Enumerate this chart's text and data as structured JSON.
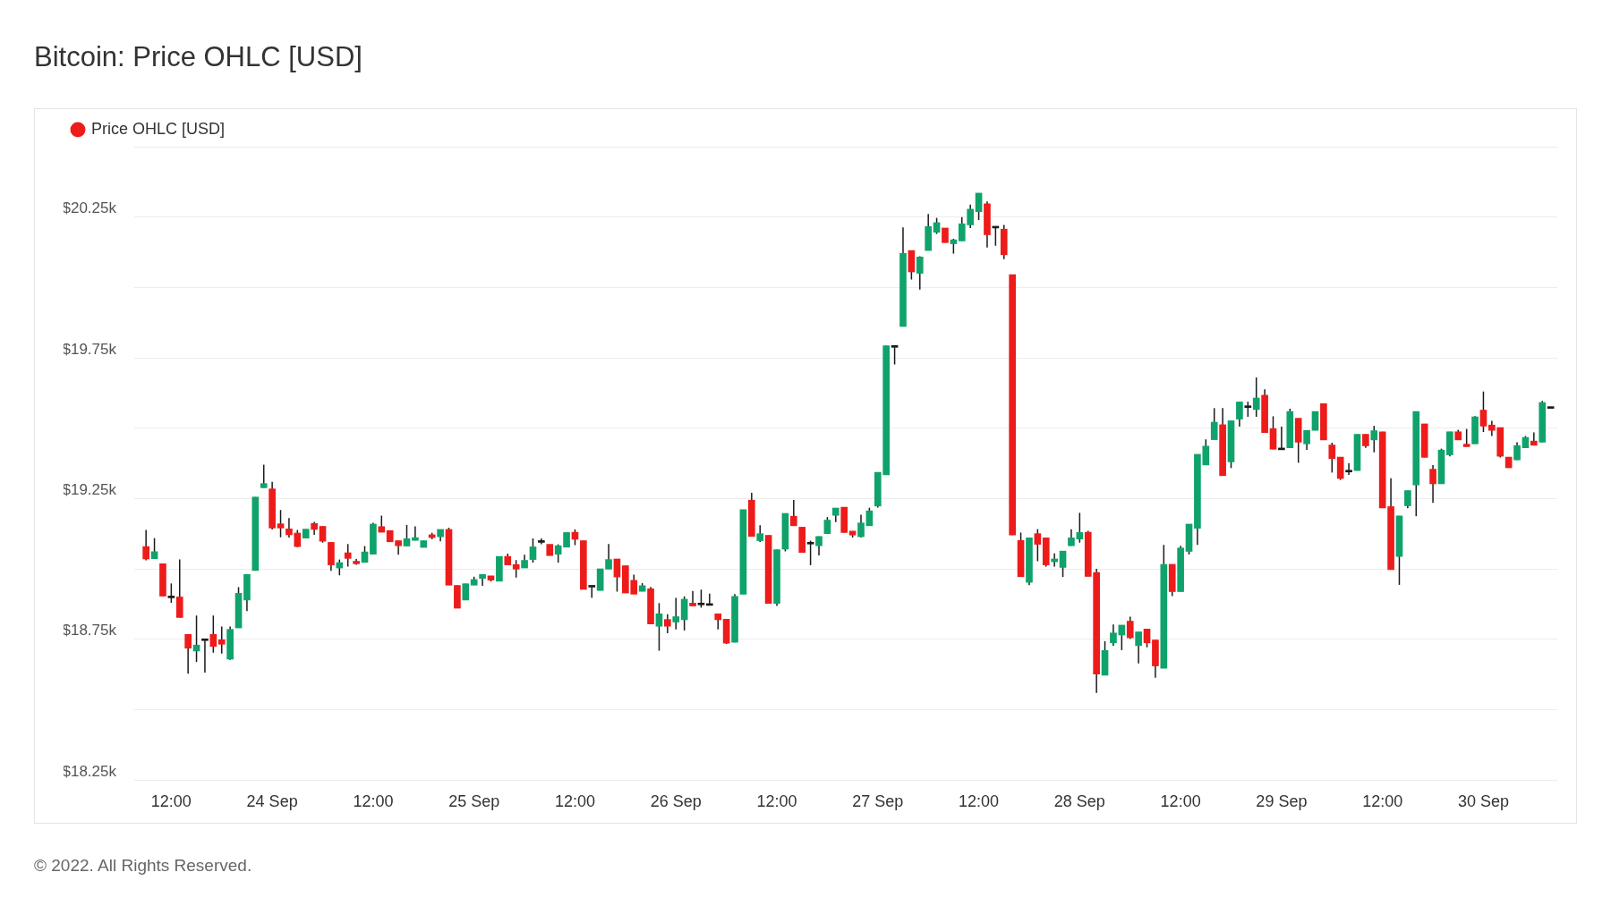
{
  "chart_data": {
    "type": "candlestick",
    "title": "Bitcoin: Price OHLC [USD]",
    "x": [
      "2022-09-23T09:00",
      "2022-09-23T10:00",
      "2022-09-23T11:00",
      "2022-09-23T12:00",
      "2022-09-23T13:00",
      "2022-09-23T14:00",
      "2022-09-23T15:00",
      "2022-09-23T16:00",
      "2022-09-23T17:00",
      "2022-09-23T18:00",
      "2022-09-23T19:00",
      "2022-09-23T20:00",
      "2022-09-23T21:00",
      "2022-09-23T22:00",
      "2022-09-23T23:00",
      "2022-09-24T00:00",
      "2022-09-24T01:00",
      "2022-09-24T02:00",
      "2022-09-24T03:00",
      "2022-09-24T04:00",
      "2022-09-24T05:00",
      "2022-09-24T06:00",
      "2022-09-24T07:00",
      "2022-09-24T08:00",
      "2022-09-24T09:00",
      "2022-09-24T10:00",
      "2022-09-24T11:00",
      "2022-09-24T12:00",
      "2022-09-24T13:00",
      "2022-09-24T14:00",
      "2022-09-24T15:00",
      "2022-09-24T16:00",
      "2022-09-24T17:00",
      "2022-09-24T18:00",
      "2022-09-24T19:00",
      "2022-09-24T20:00",
      "2022-09-24T21:00",
      "2022-09-24T22:00",
      "2022-09-24T23:00",
      "2022-09-25T00:00",
      "2022-09-25T01:00",
      "2022-09-25T02:00",
      "2022-09-25T03:00",
      "2022-09-25T04:00",
      "2022-09-25T05:00",
      "2022-09-25T06:00",
      "2022-09-25T07:00",
      "2022-09-25T08:00",
      "2022-09-25T09:00",
      "2022-09-25T10:00",
      "2022-09-25T11:00",
      "2022-09-25T12:00",
      "2022-09-25T13:00",
      "2022-09-25T14:00",
      "2022-09-25T15:00",
      "2022-09-25T16:00",
      "2022-09-25T17:00",
      "2022-09-25T18:00",
      "2022-09-25T19:00",
      "2022-09-25T20:00",
      "2022-09-25T21:00",
      "2022-09-25T22:00",
      "2022-09-25T23:00",
      "2022-09-26T00:00",
      "2022-09-26T01:00",
      "2022-09-26T02:00",
      "2022-09-26T03:00",
      "2022-09-26T04:00",
      "2022-09-26T05:00",
      "2022-09-26T06:00",
      "2022-09-26T07:00",
      "2022-09-26T08:00",
      "2022-09-26T09:00",
      "2022-09-26T10:00",
      "2022-09-26T11:00",
      "2022-09-26T12:00",
      "2022-09-26T13:00",
      "2022-09-26T14:00",
      "2022-09-26T15:00",
      "2022-09-26T16:00",
      "2022-09-26T17:00",
      "2022-09-26T18:00",
      "2022-09-26T19:00",
      "2022-09-26T20:00",
      "2022-09-26T21:00",
      "2022-09-26T22:00",
      "2022-09-26T23:00",
      "2022-09-27T00:00",
      "2022-09-27T01:00",
      "2022-09-27T02:00",
      "2022-09-27T03:00",
      "2022-09-27T04:00",
      "2022-09-27T05:00",
      "2022-09-27T06:00",
      "2022-09-27T07:00",
      "2022-09-27T08:00",
      "2022-09-27T09:00",
      "2022-09-27T10:00",
      "2022-09-27T11:00",
      "2022-09-27T12:00",
      "2022-09-27T13:00",
      "2022-09-27T14:00",
      "2022-09-27T15:00",
      "2022-09-27T16:00",
      "2022-09-27T17:00",
      "2022-09-27T18:00",
      "2022-09-27T19:00",
      "2022-09-27T20:00",
      "2022-09-27T21:00",
      "2022-09-27T22:00",
      "2022-09-27T23:00",
      "2022-09-28T00:00",
      "2022-09-28T01:00",
      "2022-09-28T02:00",
      "2022-09-28T03:00",
      "2022-09-28T04:00",
      "2022-09-28T05:00",
      "2022-09-28T06:00",
      "2022-09-28T07:00",
      "2022-09-28T08:00",
      "2022-09-28T09:00",
      "2022-09-28T10:00",
      "2022-09-28T11:00",
      "2022-09-28T12:00",
      "2022-09-28T13:00",
      "2022-09-28T14:00",
      "2022-09-28T15:00",
      "2022-09-28T16:00",
      "2022-09-28T17:00",
      "2022-09-28T18:00",
      "2022-09-28T19:00",
      "2022-09-28T20:00",
      "2022-09-28T21:00",
      "2022-09-28T22:00",
      "2022-09-28T23:00",
      "2022-09-29T00:00",
      "2022-09-29T01:00",
      "2022-09-29T02:00",
      "2022-09-29T03:00",
      "2022-09-29T04:00",
      "2022-09-29T05:00",
      "2022-09-29T06:00",
      "2022-09-29T07:00",
      "2022-09-29T08:00",
      "2022-09-29T09:00",
      "2022-09-29T10:00",
      "2022-09-29T11:00",
      "2022-09-29T12:00",
      "2022-09-29T13:00",
      "2022-09-29T14:00",
      "2022-09-29T15:00",
      "2022-09-29T16:00",
      "2022-09-29T17:00",
      "2022-09-29T18:00",
      "2022-09-29T19:00",
      "2022-09-29T20:00",
      "2022-09-29T21:00",
      "2022-09-29T22:00",
      "2022-09-29T23:00",
      "2022-09-30T00:00",
      "2022-09-30T01:00",
      "2022-09-30T02:00",
      "2022-09-30T03:00",
      "2022-09-30T04:00",
      "2022-09-30T05:00",
      "2022-09-30T06:00",
      "2022-09-30T07:00",
      "2022-09-30T08:00"
    ],
    "xlim": [
      "2022-09-23T07:36",
      "2022-09-30T08:47"
    ],
    "xticks": [
      {
        "value": "2022-09-23T12:00",
        "label": "12:00"
      },
      {
        "value": "2022-09-24T00:00",
        "label": "24 Sep"
      },
      {
        "value": "2022-09-24T12:00",
        "label": "12:00"
      },
      {
        "value": "2022-09-25T00:00",
        "label": "25 Sep"
      },
      {
        "value": "2022-09-25T12:00",
        "label": "12:00"
      },
      {
        "value": "2022-09-26T00:00",
        "label": "26 Sep"
      },
      {
        "value": "2022-09-26T12:00",
        "label": "12:00"
      },
      {
        "value": "2022-09-27T00:00",
        "label": "27 Sep"
      },
      {
        "value": "2022-09-27T12:00",
        "label": "12:00"
      },
      {
        "value": "2022-09-28T00:00",
        "label": "28 Sep"
      },
      {
        "value": "2022-09-28T12:00",
        "label": "12:00"
      },
      {
        "value": "2022-09-29T00:00",
        "label": "29 Sep"
      },
      {
        "value": "2022-09-29T12:00",
        "label": "12:00"
      },
      {
        "value": "2022-09-30T00:00",
        "label": "30 Sep"
      }
    ],
    "ylim": [
      18250,
      20500
    ],
    "yticks": [
      {
        "value": 18250,
        "label": "$18.25k"
      },
      {
        "value": 18500,
        "label": null
      },
      {
        "value": 18750,
        "label": "$18.75k"
      },
      {
        "value": 19000,
        "label": null
      },
      {
        "value": 19250,
        "label": "$19.25k"
      },
      {
        "value": 19500,
        "label": null
      },
      {
        "value": 19750,
        "label": "$19.75k"
      },
      {
        "value": 20000,
        "label": null
      },
      {
        "value": 20250,
        "label": "$20.25k"
      },
      {
        "value": 20500,
        "label": null
      }
    ],
    "grid": "y",
    "legend": "top left",
    "series": [
      {
        "name": "Price OHLC [USD]",
        "color": "#ee1b1b",
        "ohlc": [
          [
            19079,
            19138,
            19030,
            19035
          ],
          [
            19036,
            19109,
            19036,
            19061
          ],
          [
            19018,
            19018,
            18903,
            18903
          ],
          [
            18897,
            18948,
            18879,
            18897
          ],
          [
            18900,
            19033,
            18827,
            18827
          ],
          [
            18767,
            18767,
            18627,
            18718
          ],
          [
            18708,
            18834,
            18669,
            18729
          ],
          [
            18745,
            18745,
            18631,
            18745
          ],
          [
            18767,
            18834,
            18702,
            18724
          ],
          [
            18748,
            18795,
            18699,
            18732
          ],
          [
            18679,
            18795,
            18677,
            18785
          ],
          [
            18790,
            18935,
            18790,
            18913
          ],
          [
            18889,
            18980,
            18850,
            18980
          ],
          [
            18994,
            19255,
            18994,
            19255
          ],
          [
            19288,
            19370,
            19288,
            19303
          ],
          [
            19284,
            19309,
            19140,
            19145
          ],
          [
            19160,
            19209,
            19112,
            19145
          ],
          [
            19142,
            19180,
            19111,
            19121
          ],
          [
            19127,
            19138,
            19077,
            19079
          ],
          [
            19109,
            19141,
            19109,
            19141
          ],
          [
            19161,
            19167,
            19121,
            19140
          ],
          [
            19151,
            19151,
            19093,
            19098
          ],
          [
            19094,
            19094,
            18993,
            19014
          ],
          [
            19003,
            19033,
            18977,
            19022
          ],
          [
            19057,
            19088,
            19008,
            19037
          ],
          [
            19027,
            19035,
            19014,
            19018
          ],
          [
            19023,
            19081,
            19023,
            19060
          ],
          [
            19052,
            19164,
            19052,
            19159
          ],
          [
            19150,
            19189,
            19130,
            19130
          ],
          [
            19136,
            19136,
            19096,
            19096
          ],
          [
            19100,
            19100,
            19050,
            19082
          ],
          [
            19081,
            19156,
            19081,
            19107
          ],
          [
            19101,
            19151,
            19101,
            19111
          ],
          [
            19076,
            19100,
            19076,
            19100
          ],
          [
            19121,
            19128,
            19105,
            19111
          ],
          [
            19114,
            19140,
            19098,
            19140
          ],
          [
            19140,
            19146,
            18942,
            18942
          ],
          [
            18941,
            18941,
            18860,
            18860
          ],
          [
            18889,
            18947,
            18889,
            18947
          ],
          [
            18942,
            18972,
            18942,
            18962
          ],
          [
            18966,
            18980,
            18940,
            18980
          ],
          [
            18975,
            18975,
            18955,
            18960
          ],
          [
            18956,
            19044,
            18956,
            19044
          ],
          [
            19044,
            19054,
            19014,
            19014
          ],
          [
            19015,
            19031,
            18969,
            18999
          ],
          [
            19003,
            19050,
            19003,
            19030
          ],
          [
            19033,
            19108,
            19022,
            19078
          ],
          [
            19094,
            19108,
            19087,
            19094
          ],
          [
            19087,
            19087,
            19047,
            19047
          ],
          [
            19052,
            19087,
            19022,
            19082
          ],
          [
            19077,
            19129,
            19077,
            19129
          ],
          [
            19130,
            19140,
            19084,
            19105
          ],
          [
            19100,
            19100,
            18927,
            18927
          ],
          [
            18935,
            18935,
            18897,
            18935
          ],
          [
            18923,
            19000,
            18923,
            19000
          ],
          [
            18999,
            19088,
            18999,
            19033
          ],
          [
            19035,
            19035,
            18919,
            18971
          ],
          [
            19011,
            19011,
            18914,
            18914
          ],
          [
            18959,
            18979,
            18910,
            18910
          ],
          [
            18920,
            18949,
            18920,
            18940
          ],
          [
            18929,
            18936,
            18804,
            18804
          ],
          [
            18796,
            18878,
            18709,
            18840
          ],
          [
            18820,
            18839,
            18771,
            18796
          ],
          [
            18811,
            18897,
            18785,
            18830
          ],
          [
            18819,
            18902,
            18781,
            18892
          ],
          [
            18878,
            18921,
            18868,
            18868
          ],
          [
            18872,
            18926,
            18862,
            18872
          ],
          [
            18870,
            18912,
            18870,
            18870
          ],
          [
            18840,
            18840,
            18785,
            18819
          ],
          [
            18821,
            18821,
            18733,
            18736
          ],
          [
            18739,
            18910,
            18739,
            18902
          ],
          [
            18910,
            19210,
            18910,
            19210
          ],
          [
            19244,
            19270,
            19115,
            19115
          ],
          [
            19100,
            19155,
            19095,
            19125
          ],
          [
            19119,
            19119,
            18877,
            18877
          ],
          [
            18877,
            19068,
            18868,
            19068
          ],
          [
            19070,
            19197,
            19062,
            19197
          ],
          [
            19187,
            19245,
            19153,
            19153
          ],
          [
            19148,
            19148,
            19058,
            19058
          ],
          [
            19088,
            19100,
            19013,
            19088
          ],
          [
            19082,
            19115,
            19048,
            19115
          ],
          [
            19125,
            19184,
            19125,
            19173
          ],
          [
            19190,
            19216,
            19166,
            19216
          ],
          [
            19219,
            19219,
            19129,
            19129
          ],
          [
            19134,
            19134,
            19111,
            19120
          ],
          [
            19114,
            19192,
            19111,
            19163
          ],
          [
            19153,
            19217,
            19153,
            19206
          ],
          [
            19223,
            19343,
            19218,
            19343
          ],
          [
            19334,
            19793,
            19334,
            19793
          ],
          [
            19787,
            19787,
            19726,
            19787
          ],
          [
            19861,
            20213,
            19861,
            20121
          ],
          [
            20131,
            20131,
            20028,
            20055
          ],
          [
            20050,
            20111,
            19992,
            20108
          ],
          [
            20131,
            20261,
            20131,
            20216
          ],
          [
            20196,
            20247,
            20190,
            20230
          ],
          [
            20211,
            20211,
            20159,
            20159
          ],
          [
            20155,
            20173,
            20120,
            20169
          ],
          [
            20165,
            20250,
            20165,
            20226
          ],
          [
            20222,
            20294,
            20211,
            20278
          ],
          [
            20269,
            20335,
            20239,
            20335
          ],
          [
            20297,
            20305,
            20142,
            20187
          ],
          [
            20211,
            20211,
            20148,
            20211
          ],
          [
            20207,
            20222,
            20100,
            20116
          ],
          [
            20045,
            20045,
            19120,
            19120
          ],
          [
            19101,
            19129,
            18972,
            18972
          ],
          [
            18952,
            19110,
            18942,
            19110
          ],
          [
            19125,
            19141,
            19027,
            19087
          ],
          [
            19110,
            19110,
            19008,
            19014
          ],
          [
            19025,
            19055,
            19008,
            19035
          ],
          [
            19005,
            19063,
            18971,
            19063
          ],
          [
            19082,
            19141,
            19082,
            19110
          ],
          [
            19106,
            19199,
            19093,
            19129
          ],
          [
            19130,
            19135,
            18973,
            18973
          ],
          [
            18987,
            19000,
            18559,
            18626
          ],
          [
            18622,
            18743,
            18622,
            18710
          ],
          [
            18737,
            18802,
            18727,
            18772
          ],
          [
            18765,
            18800,
            18711,
            18800
          ],
          [
            18814,
            18830,
            18751,
            18755
          ],
          [
            18727,
            18776,
            18664,
            18776
          ],
          [
            18786,
            18786,
            18721,
            18737
          ],
          [
            18747,
            18747,
            18613,
            18655
          ],
          [
            18647,
            19085,
            18647,
            19016
          ],
          [
            19016,
            19016,
            18903,
            18919
          ],
          [
            18919,
            19082,
            18919,
            19074
          ],
          [
            19062,
            19159,
            19051,
            19159
          ],
          [
            19144,
            19407,
            19085,
            19407
          ],
          [
            19369,
            19460,
            19369,
            19436
          ],
          [
            19459,
            19571,
            19459,
            19521
          ],
          [
            19512,
            19571,
            19331,
            19331
          ],
          [
            19380,
            19526,
            19358,
            19526
          ],
          [
            19532,
            19593,
            19505,
            19593
          ],
          [
            19573,
            19594,
            19540,
            19573
          ],
          [
            19566,
            19680,
            19540,
            19607
          ],
          [
            19617,
            19638,
            19484,
            19484
          ],
          [
            19498,
            19542,
            19425,
            19425
          ],
          [
            19423,
            19505,
            19423,
            19423
          ],
          [
            19430,
            19569,
            19430,
            19559
          ],
          [
            19535,
            19535,
            19377,
            19450
          ],
          [
            19444,
            19492,
            19423,
            19492
          ],
          [
            19492,
            19559,
            19492,
            19559
          ],
          [
            19587,
            19587,
            19458,
            19458
          ],
          [
            19440,
            19448,
            19342,
            19392
          ],
          [
            19397,
            19397,
            19316,
            19321
          ],
          [
            19344,
            19375,
            19334,
            19344
          ],
          [
            19349,
            19478,
            19349,
            19478
          ],
          [
            19478,
            19478,
            19430,
            19437
          ],
          [
            19458,
            19508,
            19414,
            19491
          ],
          [
            19487,
            19487,
            19216,
            19216
          ],
          [
            19221,
            19322,
            18997,
            18997
          ],
          [
            19044,
            19188,
            18943,
            19188
          ],
          [
            19224,
            19278,
            19215,
            19278
          ],
          [
            19298,
            19559,
            19187,
            19559
          ],
          [
            19515,
            19515,
            19396,
            19396
          ],
          [
            19354,
            19369,
            19234,
            19302
          ],
          [
            19302,
            19427,
            19302,
            19422
          ],
          [
            19405,
            19487,
            19400,
            19487
          ],
          [
            19487,
            19494,
            19458,
            19458
          ],
          [
            19443,
            19497,
            19434,
            19434
          ],
          [
            19444,
            19543,
            19444,
            19540
          ],
          [
            19564,
            19630,
            19486,
            19507
          ],
          [
            19511,
            19526,
            19472,
            19492
          ],
          [
            19502,
            19502,
            19396,
            19400
          ],
          [
            19397,
            19397,
            19359,
            19359
          ],
          [
            19387,
            19450,
            19387,
            19438
          ],
          [
            19430,
            19472,
            19430,
            19467
          ],
          [
            19454,
            19485,
            19439,
            19439
          ],
          [
            19450,
            19597,
            19450,
            19591
          ],
          [
            19570,
            19570,
            19570,
            19570
          ]
        ],
        "colors": [
          "#ee1b1b",
          "#0fa36b",
          "#ee1b1b",
          "#1a1a1a",
          "#ee1b1b",
          "#ee1b1b",
          "#0fa36b",
          "#1a1a1a",
          "#ee1b1b",
          "#ee1b1b",
          "#0fa36b",
          "#0fa36b",
          "#0fa36b",
          "#0fa36b",
          "#0fa36b",
          "#ee1b1b",
          "#ee1b1b",
          "#ee1b1b",
          "#ee1b1b",
          "#0fa36b",
          "#ee1b1b",
          "#ee1b1b",
          "#ee1b1b",
          "#0fa36b",
          "#ee1b1b",
          "#ee1b1b",
          "#0fa36b",
          "#0fa36b",
          "#ee1b1b",
          "#ee1b1b",
          "#ee1b1b",
          "#0fa36b",
          "#0fa36b",
          "#0fa36b",
          "#ee1b1b",
          "#0fa36b",
          "#ee1b1b",
          "#ee1b1b",
          "#0fa36b",
          "#0fa36b",
          "#0fa36b",
          "#ee1b1b",
          "#0fa36b",
          "#ee1b1b",
          "#ee1b1b",
          "#0fa36b",
          "#0fa36b",
          "#1a1a1a",
          "#ee1b1b",
          "#0fa36b",
          "#0fa36b",
          "#ee1b1b",
          "#ee1b1b",
          "#1a1a1a",
          "#0fa36b",
          "#0fa36b",
          "#ee1b1b",
          "#ee1b1b",
          "#ee1b1b",
          "#0fa36b",
          "#ee1b1b",
          "#0fa36b",
          "#ee1b1b",
          "#0fa36b",
          "#0fa36b",
          "#ee1b1b",
          "#1a1a1a",
          "#1a1a1a",
          "#ee1b1b",
          "#ee1b1b",
          "#0fa36b",
          "#0fa36b",
          "#ee1b1b",
          "#0fa36b",
          "#ee1b1b",
          "#0fa36b",
          "#0fa36b",
          "#ee1b1b",
          "#ee1b1b",
          "#1a1a1a",
          "#0fa36b",
          "#0fa36b",
          "#0fa36b",
          "#ee1b1b",
          "#ee1b1b",
          "#0fa36b",
          "#0fa36b",
          "#0fa36b",
          "#0fa36b",
          "#1a1a1a",
          "#0fa36b",
          "#ee1b1b",
          "#0fa36b",
          "#0fa36b",
          "#0fa36b",
          "#ee1b1b",
          "#0fa36b",
          "#0fa36b",
          "#0fa36b",
          "#0fa36b",
          "#ee1b1b",
          "#1a1a1a",
          "#ee1b1b",
          "#ee1b1b",
          "#ee1b1b",
          "#0fa36b",
          "#ee1b1b",
          "#ee1b1b",
          "#0fa36b",
          "#0fa36b",
          "#0fa36b",
          "#0fa36b",
          "#ee1b1b",
          "#ee1b1b",
          "#0fa36b",
          "#0fa36b",
          "#0fa36b",
          "#ee1b1b",
          "#0fa36b",
          "#ee1b1b",
          "#ee1b1b",
          "#0fa36b",
          "#ee1b1b",
          "#0fa36b",
          "#0fa36b",
          "#0fa36b",
          "#0fa36b",
          "#0fa36b",
          "#ee1b1b",
          "#0fa36b",
          "#0fa36b",
          "#1a1a1a",
          "#0fa36b",
          "#ee1b1b",
          "#ee1b1b",
          "#1a1a1a",
          "#0fa36b",
          "#ee1b1b",
          "#0fa36b",
          "#0fa36b",
          "#ee1b1b",
          "#ee1b1b",
          "#ee1b1b",
          "#1a1a1a",
          "#0fa36b",
          "#ee1b1b",
          "#0fa36b",
          "#ee1b1b",
          "#ee1b1b",
          "#0fa36b",
          "#0fa36b",
          "#0fa36b",
          "#ee1b1b",
          "#ee1b1b",
          "#0fa36b",
          "#0fa36b",
          "#ee1b1b",
          "#ee1b1b",
          "#0fa36b",
          "#ee1b1b",
          "#ee1b1b",
          "#ee1b1b",
          "#ee1b1b",
          "#0fa36b",
          "#0fa36b",
          "#ee1b1b",
          "#0fa36b",
          "#1a1a1a"
        ]
      }
    ],
    "annotations": [
      "© 2022. All Rights Reserved."
    ]
  }
}
